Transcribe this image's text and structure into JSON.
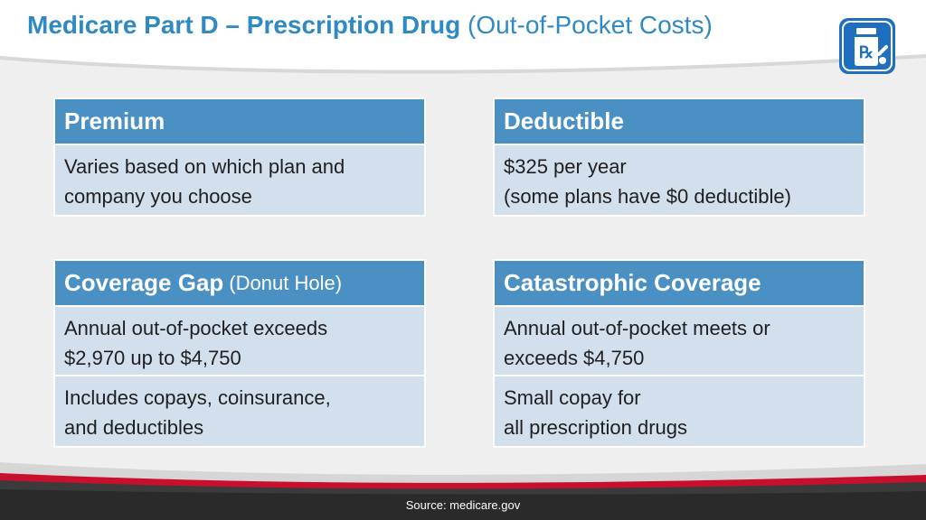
{
  "header": {
    "title_bold": "Medicare Part D – Prescription Drug",
    "title_light": "(Out-of-Pocket Costs)",
    "icon": "prescription-bottle-icon",
    "rx_symbol": "℞"
  },
  "cards": {
    "premium": {
      "title": "Premium",
      "rows": [
        [
          "Varies based on which plan and",
          "company you choose"
        ]
      ]
    },
    "deductible": {
      "title": "Deductible",
      "rows": [
        [
          "$325 per year",
          "(some plans have $0 deductible)"
        ]
      ]
    },
    "coverage_gap": {
      "title": "Coverage Gap",
      "subtitle": "(Donut Hole)",
      "rows": [
        [
          "Annual out-of-pocket exceeds",
          "$2,970 up to $4,750"
        ],
        [
          "Includes copays, coinsurance,",
          "and deductibles"
        ]
      ]
    },
    "catastrophic": {
      "title": "Catastrophic Coverage",
      "rows": [
        [
          "Annual out-of-pocket meets or",
          "exceeds $4,750"
        ],
        [
          "Small copay for",
          "all prescription drugs"
        ]
      ]
    }
  },
  "footer": {
    "source": "Source: medicare.gov"
  },
  "colors": {
    "title": "#2f8ac4",
    "card_header": "#4a90c3",
    "card_row": "#d2dfec",
    "footer_dark": "#3b3b3b",
    "footer_red": "#c8102e",
    "badge": "#1f6fc1"
  }
}
